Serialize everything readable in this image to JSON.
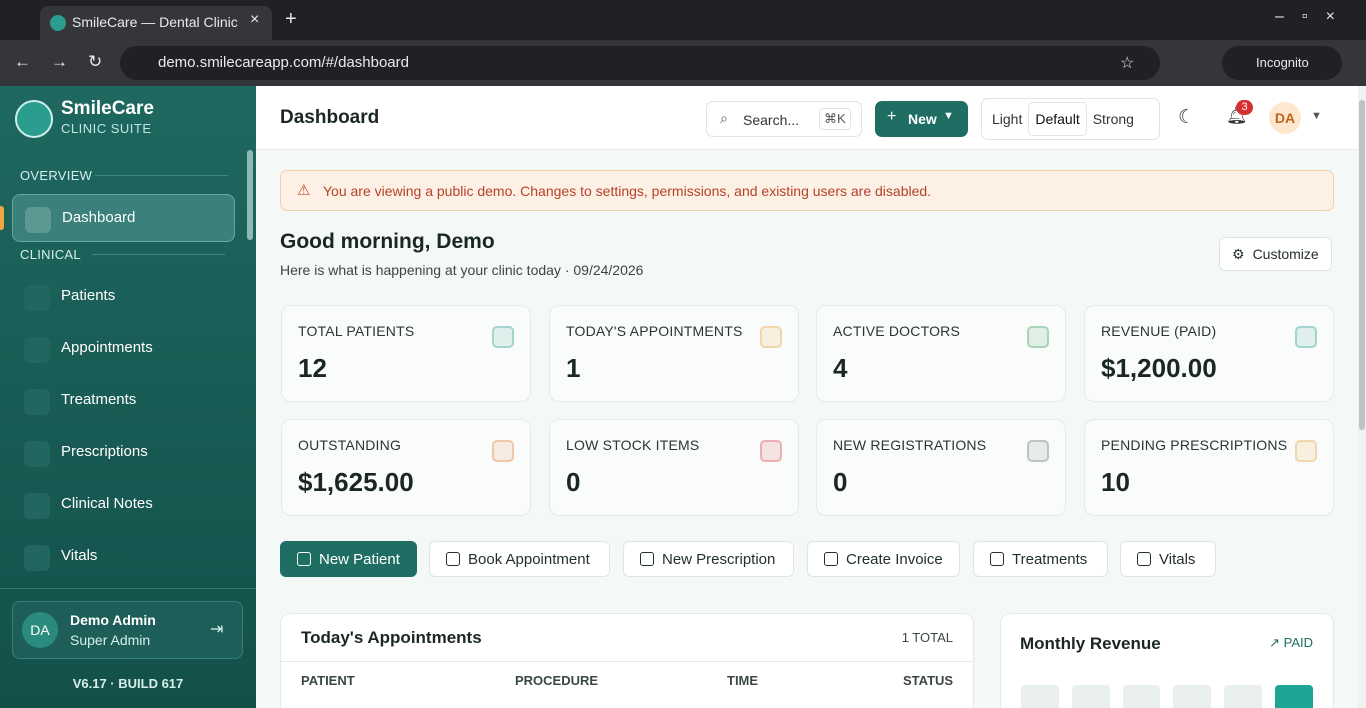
{
  "browser": {
    "tab_title": "SmileCare — Dental Clinic M",
    "url": "demo.smilecareapp.com/#/dashboard",
    "incognito": "Incognito"
  },
  "sidebar": {
    "brand": "SmileCare",
    "brand_sub": "CLINIC SUITE",
    "sections": [
      {
        "title": "OVERVIEW",
        "items": [
          "Dashboard"
        ]
      },
      {
        "title": "CLINICAL",
        "items": [
          "Patients",
          "Appointments",
          "Treatments",
          "Prescriptions",
          "Clinical Notes",
          "Vitals"
        ]
      }
    ],
    "user": {
      "initials": "DA",
      "name": "Demo Admin",
      "role": "Super Admin"
    },
    "version": "V6.17 · BUILD 617"
  },
  "header": {
    "title": "Dashboard",
    "search": "Search...",
    "shortcut": "⌘K",
    "new": "New",
    "themes": [
      "Light",
      "Default",
      "Strong"
    ],
    "notifications": "3",
    "avatar": "DA"
  },
  "banner": "You are viewing a public demo. Changes to settings, permissions, and existing users are disabled.",
  "greeting": {
    "title": "Good morning, Demo",
    "subtitle": "Here is what is happening at your clinic today · 09/24/2026",
    "customize": "Customize"
  },
  "stats": [
    {
      "label": "TOTAL PATIENTS",
      "value": "12"
    },
    {
      "label": "TODAY'S APPOINTMENTS",
      "value": "1"
    },
    {
      "label": "ACTIVE DOCTORS",
      "value": "4"
    },
    {
      "label": "REVENUE (PAID)",
      "value": "$1,200.00"
    },
    {
      "label": "OUTSTANDING",
      "value": "$1,625.00"
    },
    {
      "label": "LOW STOCK ITEMS",
      "value": "0"
    },
    {
      "label": "NEW REGISTRATIONS",
      "value": "0"
    },
    {
      "label": "PENDING PRESCRIPTIONS",
      "value": "10"
    }
  ],
  "actions": [
    "New Patient",
    "Book Appointment",
    "New Prescription",
    "Create Invoice",
    "Treatments",
    "Vitals"
  ],
  "appointments": {
    "title": "Today's Appointments",
    "total": "1 TOTAL",
    "columns": [
      "PATIENT",
      "PROCEDURE",
      "TIME",
      "STATUS"
    ]
  },
  "revenue": {
    "title": "Monthly Revenue",
    "badge": "PAID"
  }
}
